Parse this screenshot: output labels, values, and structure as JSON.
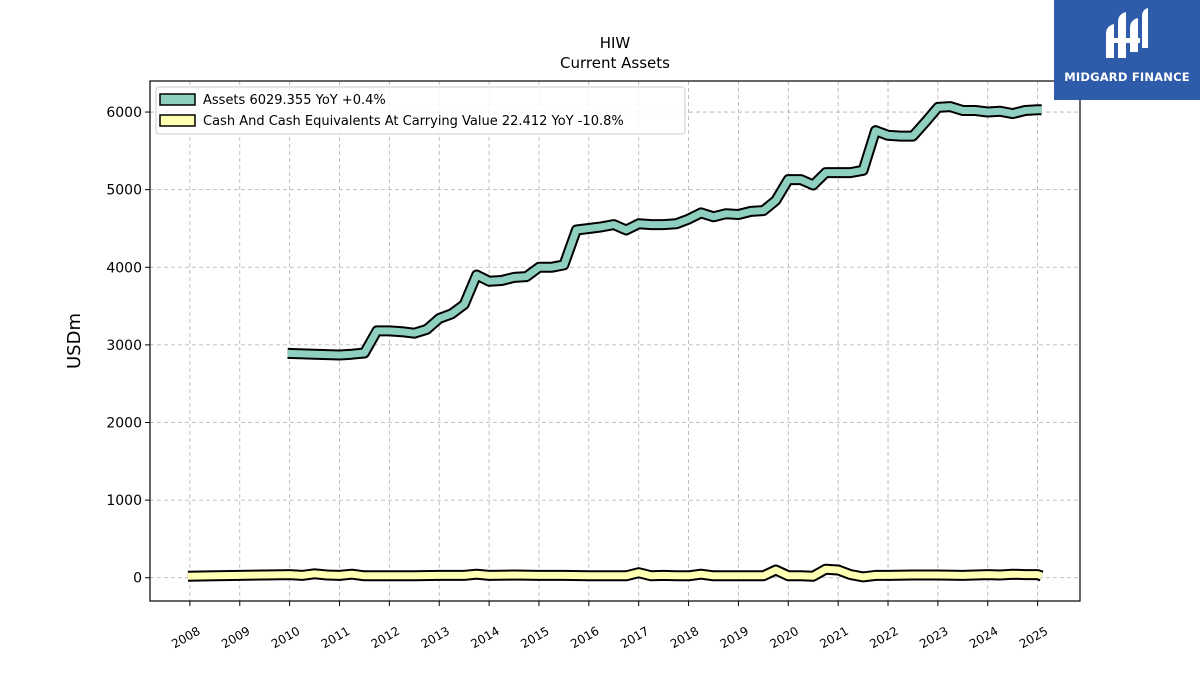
{
  "chart_data": {
    "type": "line",
    "title": "HIW",
    "subtitle": "Current  Assets",
    "ylabel": "USDm",
    "xlabel": "",
    "ylim": [
      -300,
      6400
    ],
    "xlim": [
      2007.2,
      2025.85
    ],
    "yticks": [
      0,
      1000,
      2000,
      3000,
      4000,
      5000,
      6000
    ],
    "xticks": [
      "2008",
      "2009",
      "2010",
      "2011",
      "2012",
      "2013",
      "2014",
      "2015",
      "2016",
      "2017",
      "2018",
      "2019",
      "2020",
      "2021",
      "2022",
      "2023",
      "2024",
      "2025"
    ],
    "grid": true,
    "legend_position": "top-left",
    "series": [
      {
        "name": "Assets",
        "legend": "Assets  6029.355 YoY +0.4%",
        "color": "#8ecfc0",
        "x": [
          2009.96,
          2010.5,
          2011.0,
          2011.25,
          2011.5,
          2011.75,
          2012.0,
          2012.25,
          2012.5,
          2012.75,
          2013.0,
          2013.25,
          2013.5,
          2013.75,
          2014.0,
          2014.25,
          2014.5,
          2014.75,
          2015.0,
          2015.25,
          2015.5,
          2015.75,
          2016.0,
          2016.25,
          2016.5,
          2016.75,
          2017.0,
          2017.25,
          2017.5,
          2017.75,
          2018.0,
          2018.25,
          2018.5,
          2018.75,
          2019.0,
          2019.25,
          2019.5,
          2019.75,
          2020.0,
          2020.25,
          2020.5,
          2020.75,
          2021.0,
          2021.25,
          2021.5,
          2021.75,
          2022.0,
          2022.25,
          2022.5,
          2022.75,
          2023.0,
          2023.25,
          2023.5,
          2023.75,
          2024.0,
          2024.25,
          2024.5,
          2024.75,
          2025.0,
          2025.08
        ],
        "values": [
          2890,
          2880,
          2870,
          2880,
          2895,
          3180,
          3180,
          3170,
          3150,
          3200,
          3340,
          3400,
          3520,
          3900,
          3820,
          3830,
          3870,
          3880,
          4000,
          4000,
          4030,
          4480,
          4500,
          4520,
          4550,
          4480,
          4560,
          4550,
          4550,
          4560,
          4620,
          4700,
          4650,
          4690,
          4680,
          4720,
          4730,
          4860,
          5130,
          5130,
          5060,
          5220,
          5220,
          5220,
          5250,
          5760,
          5700,
          5690,
          5690,
          5870,
          6060,
          6070,
          6020,
          6020,
          6000,
          6010,
          5980,
          6020,
          6030,
          6029
        ]
      },
      {
        "name": "Cash And Cash Equivalents At Carrying Value",
        "legend": "Cash And Cash Equivalents At Carrying Value  22.412 YoY -10.8%",
        "color": "#ffffb3",
        "x": [
          2007.96,
          2008.5,
          2009.0,
          2009.5,
          2010.0,
          2010.25,
          2010.5,
          2010.75,
          2011.0,
          2011.25,
          2011.5,
          2011.75,
          2012.0,
          2012.5,
          2013.0,
          2013.5,
          2013.75,
          2014.0,
          2014.5,
          2015.0,
          2015.5,
          2016.0,
          2016.5,
          2016.75,
          2017.0,
          2017.25,
          2017.5,
          2017.75,
          2018.0,
          2018.25,
          2018.5,
          2018.75,
          2019.0,
          2019.25,
          2019.5,
          2019.75,
          2020.0,
          2020.25,
          2020.5,
          2020.75,
          2021.0,
          2021.25,
          2021.5,
          2021.75,
          2022.0,
          2022.5,
          2023.0,
          2023.5,
          2024.0,
          2024.25,
          2024.5,
          2024.75,
          2025.0,
          2025.08
        ],
        "values": [
          20,
          25,
          30,
          35,
          40,
          30,
          50,
          35,
          30,
          45,
          25,
          25,
          25,
          25,
          30,
          30,
          45,
          30,
          35,
          30,
          30,
          25,
          25,
          25,
          65,
          25,
          30,
          25,
          25,
          45,
          25,
          25,
          25,
          25,
          25,
          100,
          25,
          25,
          20,
          110,
          100,
          40,
          10,
          30,
          30,
          35,
          35,
          30,
          40,
          35,
          45,
          40,
          40,
          22
        ]
      }
    ]
  },
  "logo": {
    "text": "MIDGARD FINANCE"
  }
}
